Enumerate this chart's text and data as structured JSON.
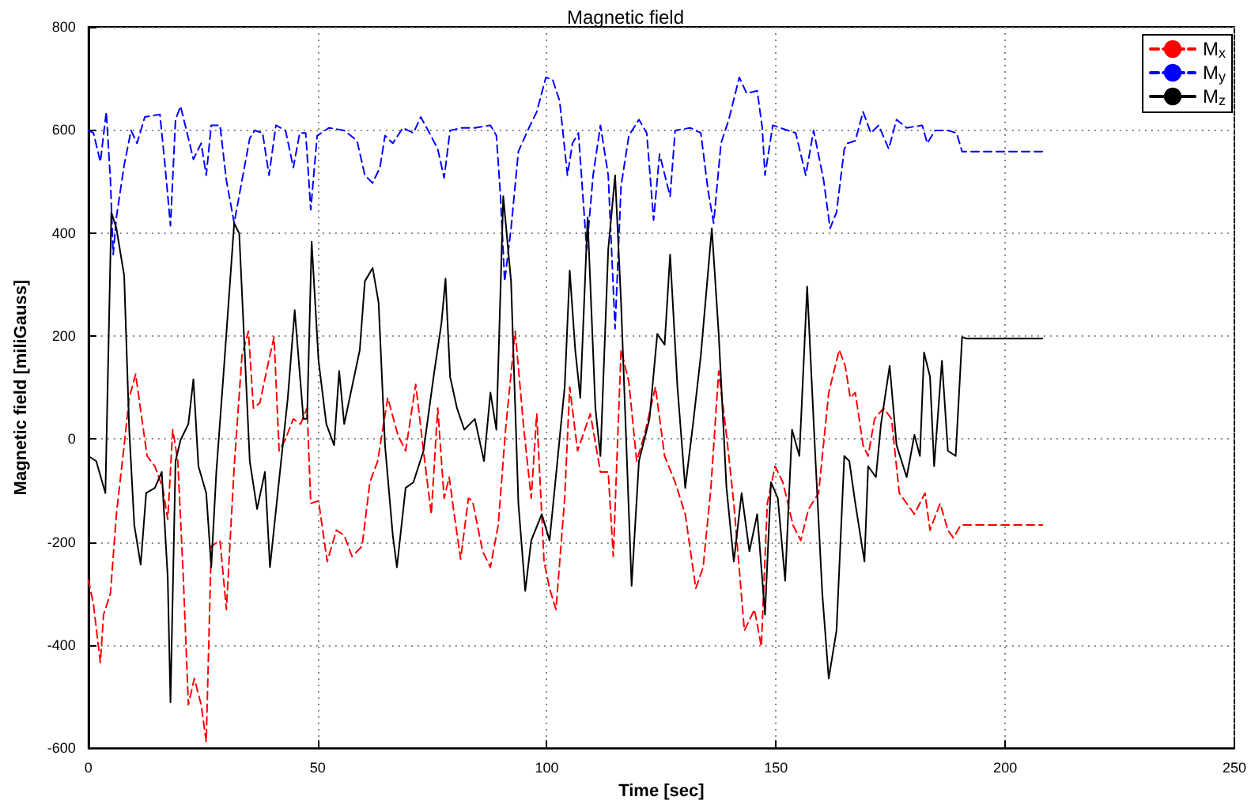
{
  "chart_data": {
    "type": "line",
    "title": "Magnetic field",
    "xlabel": "Time [sec]",
    "ylabel": "Magnetic field [miliGauss]",
    "xlim": [
      0,
      250
    ],
    "xticks": [
      0,
      50,
      100,
      150,
      200,
      250
    ],
    "ylim": [
      -600,
      800
    ],
    "yticks": [
      -600,
      -400,
      -200,
      0,
      200,
      400,
      600,
      800
    ],
    "grid": true,
    "legend": "top right",
    "marker": "none",
    "series": [
      {
        "name": "M$_{x}$",
        "color": "#ff0000",
        "line_style": "dashed",
        "x": [
          0,
          1.1,
          2.6,
          3.3,
          4.8,
          6.1,
          7.8,
          8.9,
          10.3,
          11.5,
          12.8,
          14.5,
          16.2,
          17.3,
          18.4,
          19.5,
          20.7,
          21.8,
          23.1,
          24.6,
          25.7,
          26.8,
          28.7,
          30.1,
          31.8,
          33.5,
          34.9,
          36,
          37.4,
          39.1,
          40.5,
          41.6,
          42.9,
          44.7,
          46.3,
          47.7,
          48.5,
          50.2,
          52.1,
          54.1,
          55.8,
          57.5,
          59.7,
          61.4,
          63.1,
          65.3,
          67.5,
          69.2,
          71.4,
          73.1,
          74.8,
          76.2,
          77.6,
          78.7,
          79.8,
          81.2,
          82.9,
          83.8,
          86,
          87.7,
          89.4,
          91,
          93.1,
          95,
          96.6,
          97.8,
          99.4,
          100.6,
          102,
          103.9,
          105,
          106.7,
          109.5,
          111.7,
          113.4,
          114.5,
          116.2,
          117.9,
          119.6,
          121.3,
          123.7,
          125.7,
          128,
          130.2,
          132.5,
          134.1,
          135.8,
          137.5,
          139.2,
          140.8,
          143.1,
          145.3,
          146.8,
          148.1,
          149.8,
          151.5,
          153.7,
          155.4,
          157.1,
          159.3,
          161.5,
          163.8,
          165.1,
          166.2,
          167.3,
          169,
          170.1,
          171.5,
          173.5,
          175.2,
          176.9,
          178.5,
          180.2,
          182.5,
          183.6,
          185.8,
          187.5,
          188.7,
          190.3,
          208.1
        ],
        "values": [
          -274,
          -321,
          -434,
          -341,
          -300,
          -146,
          -12,
          80,
          126,
          49,
          -33,
          -53,
          -95,
          -156,
          18,
          -43,
          -269,
          -516,
          -465,
          -516,
          -588,
          -208,
          -197,
          -331,
          -53,
          162,
          209,
          60,
          70,
          142,
          198,
          -23,
          -2,
          39,
          29,
          60,
          -125,
          -120,
          -238,
          -177,
          -187,
          -228,
          -208,
          -84,
          -43,
          80,
          8,
          -23,
          106,
          -23,
          -146,
          60,
          -115,
          -74,
          -146,
          -233,
          -115,
          -120,
          -218,
          -249,
          -167,
          18,
          209,
          18,
          -115,
          49,
          -238,
          -290,
          -331,
          -115,
          101,
          -23,
          49,
          -64,
          -64,
          -228,
          173,
          111,
          -43,
          8,
          101,
          -33,
          -84,
          -146,
          -290,
          -249,
          -95,
          132,
          8,
          -125,
          -372,
          -331,
          -403,
          -125,
          -53,
          -84,
          -167,
          -197,
          -136,
          -105,
          90,
          173,
          142,
          80,
          90,
          -12,
          -33,
          39,
          60,
          39,
          -105,
          -125,
          -146,
          -105,
          -177,
          -125,
          -177,
          -192,
          -167,
          -167
        ]
      },
      {
        "name": "M$_{y}$",
        "color": "#0000ff",
        "line_style": "dashed",
        "x": [
          0,
          1.1,
          2.6,
          3.9,
          4.8,
          5.4,
          6.1,
          7.8,
          9.3,
          10.6,
          12.3,
          15.6,
          16.7,
          17.9,
          19,
          20.1,
          21.8,
          22.9,
          24.6,
          25.7,
          26.8,
          28.7,
          30.1,
          31.8,
          33.5,
          35.2,
          36.3,
          38,
          39.4,
          40.9,
          43,
          44.7,
          46.1,
          47.4,
          48.5,
          49.9,
          52.5,
          55.8,
          58.6,
          60.3,
          62,
          63.6,
          64.7,
          66.4,
          68.6,
          70.9,
          72.5,
          74.4,
          76.2,
          77.6,
          78.9,
          81.5,
          84.3,
          87.7,
          89,
          89.9,
          90.8,
          92.2,
          93.8,
          96.1,
          97.8,
          99.8,
          101.3,
          102.8,
          104.5,
          105.6,
          106.9,
          108.7,
          110.1,
          111.7,
          113.4,
          114.9,
          116.2,
          117.9,
          120.1,
          121.8,
          123.3,
          124.6,
          126.9,
          128,
          131.3,
          133.6,
          135.2,
          136.4,
          138,
          139.7,
          142,
          143.6,
          145.9,
          147,
          147.6,
          149.3,
          152.6,
          154.3,
          156.5,
          158.2,
          160.4,
          161.8,
          163.2,
          164.9,
          165.6,
          167.3,
          169,
          170.7,
          172.4,
          174.6,
          176.3,
          178.5,
          181.9,
          183,
          184.7,
          187.5,
          189.4,
          190.6,
          208.1
        ],
        "values": [
          599,
          594,
          538,
          635,
          502,
          358,
          430,
          532,
          599,
          574,
          625,
          630,
          532,
          414,
          620,
          646,
          584,
          543,
          574,
          512,
          609,
          609,
          502,
          419,
          502,
          584,
          599,
          594,
          512,
          609,
          599,
          527,
          594,
          594,
          445,
          589,
          604,
          599,
          579,
          512,
          497,
          527,
          589,
          574,
          604,
          594,
          625,
          594,
          563,
          507,
          599,
          604,
          604,
          609,
          589,
          471,
          306,
          409,
          558,
          604,
          635,
          702,
          697,
          656,
          512,
          574,
          594,
          368,
          512,
          609,
          512,
          214,
          491,
          589,
          620,
          594,
          425,
          553,
          471,
          599,
          604,
          594,
          481,
          419,
          574,
          620,
          702,
          671,
          676,
          604,
          512,
          609,
          599,
          594,
          512,
          599,
          502,
          409,
          440,
          563,
          574,
          579,
          635,
          594,
          609,
          563,
          620,
          604,
          609,
          574,
          599,
          599,
          594,
          558,
          558
        ]
      },
      {
        "name": "M$_{z}$",
        "color": "#000000",
        "line_style": "solid",
        "x": [
          0,
          1.7,
          3.7,
          5,
          6.1,
          7.8,
          8.9,
          10,
          11.4,
          12.6,
          14.5,
          16,
          17.3,
          17.9,
          19,
          20.1,
          21.8,
          22.9,
          24,
          25.7,
          26.8,
          27.9,
          29.6,
          31.8,
          32.9,
          35.2,
          36.8,
          38.5,
          39.6,
          41.3,
          43.5,
          45,
          46.9,
          47.7,
          48.7,
          50.2,
          51.9,
          53.6,
          54.7,
          55.8,
          57.5,
          59.2,
          60.3,
          62,
          63.3,
          64.7,
          66.4,
          67.3,
          69.2,
          70.9,
          73.1,
          75.3,
          77,
          77.9,
          78.9,
          80.4,
          82,
          84.3,
          86.3,
          87.7,
          89,
          90.5,
          92.2,
          93.8,
          95.3,
          96.6,
          98.9,
          100.6,
          102.2,
          103.9,
          105,
          106.2,
          107.3,
          108.9,
          110.6,
          111.7,
          113.4,
          114.9,
          116.2,
          118.5,
          120.1,
          122.4,
          124.1,
          125.7,
          126.9,
          128.5,
          130.2,
          131.9,
          133.6,
          136,
          137.5,
          139.2,
          140.8,
          142.5,
          144.2,
          145.9,
          147.6,
          148.9,
          150.4,
          152,
          153.5,
          155.1,
          156.8,
          158.4,
          160.1,
          161.5,
          163.2,
          164.9,
          166,
          167.3,
          169.3,
          170.1,
          171.8,
          172.9,
          174.8,
          176.3,
          178.5,
          180.2,
          181.4,
          182.3,
          183.6,
          184.5,
          186.2,
          187.5,
          189.2,
          190.6,
          191.5,
          208.1
        ],
        "values": [
          -33,
          -43,
          -105,
          440,
          409,
          317,
          18,
          -167,
          -244,
          -105,
          -95,
          -64,
          -269,
          -511,
          -43,
          -2,
          29,
          116,
          -53,
          -105,
          -249,
          -64,
          142,
          419,
          399,
          -43,
          -136,
          -64,
          -249,
          -105,
          80,
          250,
          39,
          39,
          383,
          152,
          29,
          -12,
          132,
          29,
          101,
          173,
          306,
          332,
          265,
          -12,
          -187,
          -249,
          -95,
          -84,
          -23,
          121,
          224,
          311,
          121,
          60,
          18,
          39,
          -43,
          90,
          18,
          471,
          306,
          -125,
          -295,
          -197,
          -146,
          -197,
          -53,
          101,
          327,
          173,
          80,
          430,
          60,
          -33,
          368,
          512,
          265,
          -285,
          -43,
          39,
          204,
          183,
          358,
          101,
          -95,
          29,
          162,
          409,
          204,
          -95,
          -238,
          -105,
          -218,
          -146,
          -341,
          -84,
          -115,
          -275,
          18,
          -33,
          296,
          -2,
          -300,
          -465,
          -372,
          -33,
          -43,
          -125,
          -238,
          -53,
          -74,
          29,
          142,
          -12,
          -74,
          8,
          -33,
          168,
          121,
          -53,
          152,
          -23,
          -33,
          198,
          195,
          195
        ]
      }
    ]
  }
}
